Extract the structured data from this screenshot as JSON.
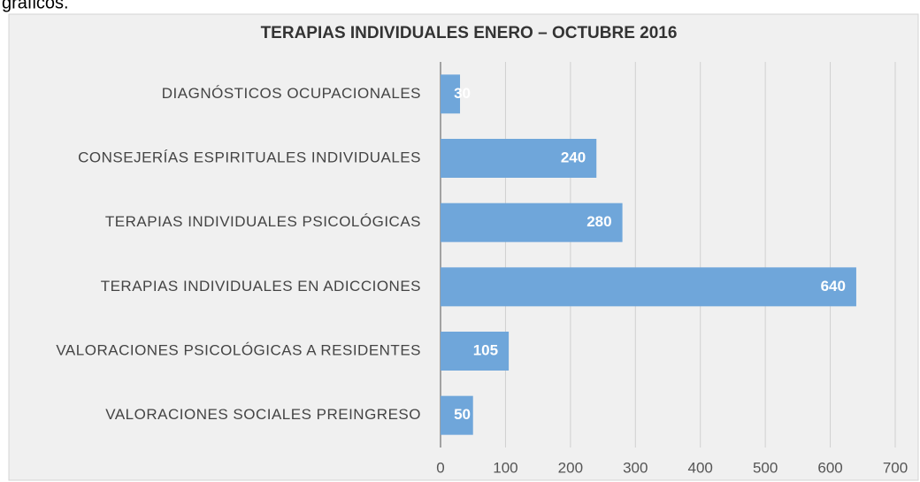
{
  "context_text": "gráficos.",
  "chart_data": {
    "type": "bar",
    "orientation": "horizontal",
    "title": "TERAPIAS INDIVIDUALES  ENERO – OCTUBRE 2016",
    "categories": [
      "DIAGNÓSTICOS  OCUPACIONALES",
      "CONSEJERÍAS ESPIRITUALES INDIVIDUALES",
      "TERAPIAS INDIVIDUALES PSICOLÓGICAS",
      "TERAPIAS INDIVIDUALES EN ADICCIONES",
      "VALORACIONES PSICOLÓGICAS A RESIDENTES",
      "VALORACIONES SOCIALES PREINGRESO"
    ],
    "values": [
      30,
      240,
      280,
      640,
      105,
      50
    ],
    "color": "#6fa6da",
    "xlim": [
      0,
      700
    ],
    "xticks": [
      0,
      100,
      200,
      300,
      400,
      500,
      600,
      700
    ],
    "grid": true
  }
}
